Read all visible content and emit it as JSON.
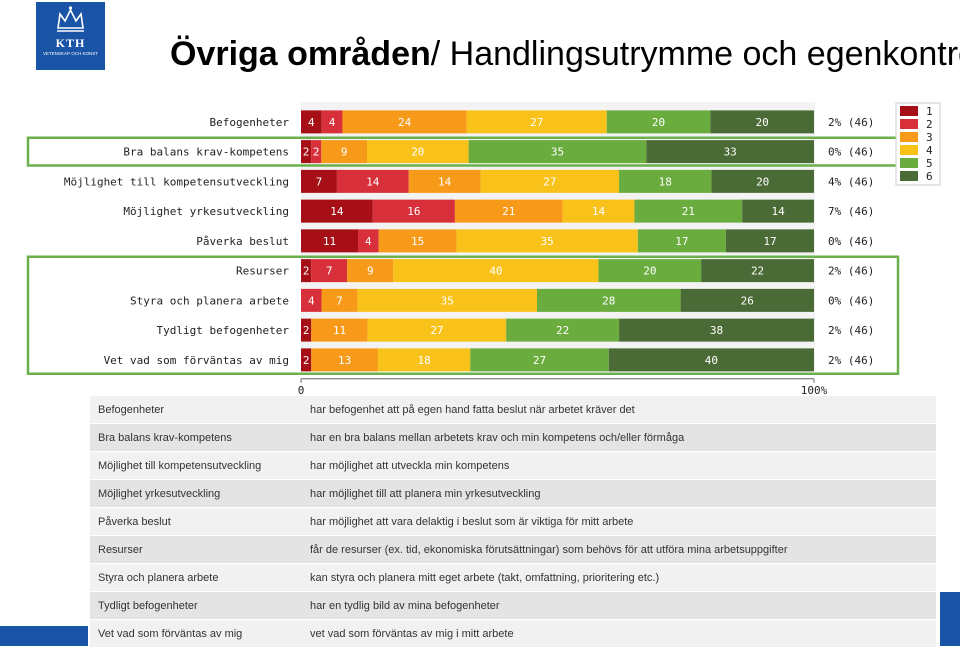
{
  "logo": {
    "text": "KTH",
    "subtext": "VETENSKAP OCH KONST"
  },
  "title": {
    "bold": "Övriga områden",
    "rest": "/ Handlingsutrymme och egenkontroll"
  },
  "chart_data": {
    "type": "bar",
    "stacked": "100%",
    "orientation": "horizontal",
    "categories": [
      "Befogenheter",
      "Bra balans krav-kompetens",
      "Möjlighet till kompetensutveckling",
      "Möjlighet yrkesutveckling",
      "Påverka beslut",
      "Resurser",
      "Styra och planera arbete",
      "Tydligt befogenheter",
      "Vet vad som förväntas av mig"
    ],
    "series": [
      {
        "name": "1",
        "color": "#a50f15",
        "values": [
          4,
          2,
          7,
          14,
          11,
          2,
          0,
          2,
          2
        ]
      },
      {
        "name": "2",
        "color": "#d7303a",
        "values": [
          4,
          2,
          14,
          16,
          4,
          7,
          4,
          0,
          0
        ]
      },
      {
        "name": "3",
        "color": "#f79a1a",
        "values": [
          24,
          9,
          14,
          21,
          15,
          9,
          7,
          11,
          13
        ]
      },
      {
        "name": "4",
        "color": "#f8c21b",
        "values": [
          27,
          20,
          27,
          14,
          35,
          40,
          35,
          27,
          18
        ]
      },
      {
        "name": "5",
        "color": "#6aac3e",
        "values": [
          20,
          35,
          18,
          21,
          17,
          20,
          28,
          22,
          27
        ]
      },
      {
        "name": "6",
        "color": "#4a6b35",
        "values": [
          20,
          33,
          20,
          14,
          17,
          22,
          26,
          38,
          40
        ]
      }
    ],
    "segment_labels": [
      [
        "4",
        "4",
        "24",
        "27",
        "20",
        "20"
      ],
      [
        "2",
        "2",
        "9",
        "20",
        "35",
        "33"
      ],
      [
        "7",
        "14",
        "14",
        "27",
        "18",
        "20"
      ],
      [
        "14",
        "16",
        "21",
        "14",
        "21",
        "14"
      ],
      [
        "11",
        "4",
        "15",
        "35",
        "17",
        "17"
      ],
      [
        "2",
        "7",
        "9",
        "40",
        "20",
        "22"
      ],
      [
        "",
        "4",
        "7",
        "35",
        "28",
        "26"
      ],
      [
        "2",
        "",
        "11",
        "27",
        "22",
        "38"
      ],
      [
        "2",
        "",
        "13",
        "18",
        "27",
        "40"
      ]
    ],
    "right_labels": [
      "2% (46)",
      "0% (46)",
      "4% (46)",
      "7% (46)",
      "0% (46)",
      "2% (46)",
      "0% (46)",
      "2% (46)",
      "2% (46)"
    ],
    "xaxis": {
      "ticks": [
        "0",
        "100%"
      ],
      "range": [
        0,
        100
      ]
    },
    "legend": {
      "position": "right",
      "entries": [
        "1",
        "2",
        "3",
        "4",
        "5",
        "6"
      ]
    },
    "highlight_groups": [
      [
        1
      ],
      [
        5,
        6,
        7,
        8
      ]
    ],
    "highlight_color": "#6ab04c"
  },
  "definitions": [
    {
      "term": "Befogenheter",
      "text": "har befogenhet att på egen hand fatta beslut när arbetet kräver det"
    },
    {
      "term": "Bra balans krav-kompetens",
      "text": "har en bra balans mellan arbetets krav och min kompetens och/eller förmåga"
    },
    {
      "term": "Möjlighet till kompetensutveckling",
      "text": "har möjlighet att utveckla min kompetens"
    },
    {
      "term": "Möjlighet yrkesutveckling",
      "text": "har möjlighet till att planera min yrkesutveckling"
    },
    {
      "term": "Påverka beslut",
      "text": "har möjlighet att vara delaktig i beslut som är viktiga för mitt arbete"
    },
    {
      "term": "Resurser",
      "text": "får de resurser (ex. tid, ekonomiska förutsättningar)  som behövs för att utföra mina arbetsuppgifter"
    },
    {
      "term": "Styra och planera arbete",
      "text": "kan styra och planera mitt eget arbete (takt, omfattning, prioritering etc.)"
    },
    {
      "term": "Tydligt befogenheter",
      "text": "har en tydlig bild av mina befogenheter"
    },
    {
      "term": "Vet vad som förväntas av mig",
      "text": "vet vad som förväntas av mig i mitt arbete"
    }
  ]
}
